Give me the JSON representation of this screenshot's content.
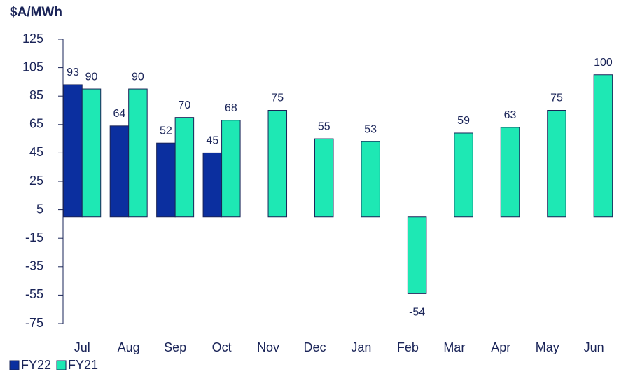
{
  "chart_data": {
    "type": "bar",
    "title": "$A/MWh",
    "categories": [
      "Jul",
      "Aug",
      "Sep",
      "Oct",
      "Nov",
      "Dec",
      "Jan",
      "Feb",
      "Mar",
      "Apr",
      "May",
      "Jun"
    ],
    "series": [
      {
        "name": "FY22",
        "color": "#0b2f9f",
        "values": [
          93,
          64,
          52,
          45,
          null,
          null,
          null,
          null,
          null,
          null,
          null,
          null
        ]
      },
      {
        "name": "FY21",
        "color": "#1ee8b4",
        "values": [
          90,
          90,
          70,
          68,
          75,
          55,
          53,
          -54,
          59,
          63,
          75,
          100
        ]
      }
    ],
    "ylim": [
      -75,
      125
    ],
    "yticks": [
      -75,
      -55,
      -35,
      -15,
      5,
      25,
      45,
      65,
      85,
      105,
      125
    ],
    "legend": "bottom-left"
  }
}
